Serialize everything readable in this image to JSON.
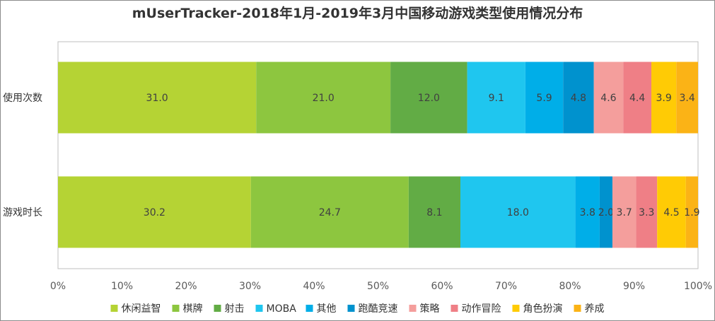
{
  "chart_data": {
    "type": "bar",
    "orientation": "horizontal",
    "stacked": "percent",
    "title": "mUserTracker-2018年1月-2019年3月中国移动游戏类型使用情况分布",
    "categories": [
      "使用次数",
      "游戏时长"
    ],
    "xlim": [
      0,
      100
    ],
    "x_ticks": [
      "0%",
      "10%",
      "20%",
      "30%",
      "40%",
      "50%",
      "60%",
      "70%",
      "80%",
      "90%",
      "100%"
    ],
    "legend_position": "bottom",
    "series": [
      {
        "name": "休闲益智",
        "color": "#b5d334",
        "values": [
          31.0,
          30.2
        ]
      },
      {
        "name": "棋牌",
        "color": "#8dc63f",
        "values": [
          21.0,
          24.7
        ]
      },
      {
        "name": "射击",
        "color": "#62ac45",
        "values": [
          12.0,
          8.1
        ]
      },
      {
        "name": "MOBA",
        "color": "#1fc6ef",
        "values": [
          9.1,
          18.0
        ]
      },
      {
        "name": "其他",
        "color": "#00aee8",
        "values": [
          5.9,
          3.8
        ]
      },
      {
        "name": "跑酷竞速",
        "color": "#0092ce",
        "values": [
          4.8,
          2.0
        ]
      },
      {
        "name": "策略",
        "color": "#f49e9c",
        "values": [
          4.6,
          3.7
        ]
      },
      {
        "name": "动作冒险",
        "color": "#ef7f86",
        "values": [
          4.4,
          3.3
        ]
      },
      {
        "name": "角色扮演",
        "color": "#ffcb05",
        "values": [
          3.9,
          4.5
        ]
      },
      {
        "name": "养成",
        "color": "#fbb316",
        "values": [
          3.4,
          1.9
        ]
      }
    ]
  }
}
